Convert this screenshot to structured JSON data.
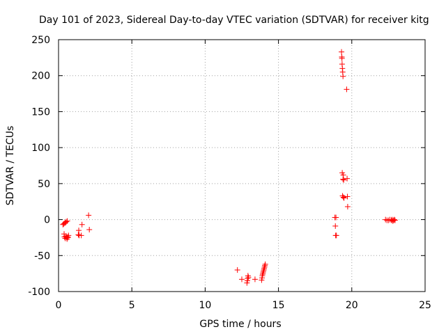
{
  "chart_data": {
    "type": "scatter",
    "title": "Day 101 of 2023, Sidereal Day-to-day VTEC variation (SDTVAR) for receiver kitg",
    "xlabel": "GPS time / hours",
    "ylabel": "SDTVAR / TECUs",
    "xlim": [
      0,
      25
    ],
    "ylim": [
      -100,
      250
    ],
    "xticks": [
      0,
      5,
      10,
      15,
      20,
      25
    ],
    "yticks": [
      -100,
      -50,
      0,
      50,
      100,
      150,
      200,
      250
    ],
    "xtick_labels": [
      "0",
      "5",
      "10",
      "15",
      "20",
      "25"
    ],
    "ytick_labels": [
      "-100",
      "-50",
      "0",
      "50",
      100,
      "150",
      "200",
      "250"
    ],
    "grid": true,
    "marker": "plus",
    "color": "#ff0000",
    "series": [
      {
        "name": "SDTVAR",
        "points": [
          [
            0.3,
            -7
          ],
          [
            0.35,
            -6
          ],
          [
            0.38,
            -20
          ],
          [
            0.4,
            -24
          ],
          [
            0.42,
            -5
          ],
          [
            0.45,
            -26
          ],
          [
            0.48,
            -4
          ],
          [
            0.5,
            -23
          ],
          [
            0.52,
            -3
          ],
          [
            0.55,
            -25
          ],
          [
            0.58,
            -27
          ],
          [
            0.6,
            -2
          ],
          [
            0.62,
            -24
          ],
          [
            0.65,
            -25
          ],
          [
            0.68,
            -22
          ],
          [
            1.35,
            -21
          ],
          [
            1.38,
            -15
          ],
          [
            1.4,
            -22
          ],
          [
            1.55,
            -22
          ],
          [
            1.6,
            -7
          ],
          [
            2.05,
            6
          ],
          [
            2.1,
            -14
          ],
          [
            12.2,
            -70
          ],
          [
            12.5,
            -83
          ],
          [
            12.85,
            -88
          ],
          [
            12.88,
            -85
          ],
          [
            12.9,
            -82
          ],
          [
            12.92,
            -78
          ],
          [
            12.95,
            -80
          ],
          [
            13.4,
            -83
          ],
          [
            13.85,
            -84
          ],
          [
            13.88,
            -81
          ],
          [
            13.9,
            -78
          ],
          [
            13.92,
            -76
          ],
          [
            13.95,
            -74
          ],
          [
            13.97,
            -72
          ],
          [
            14.0,
            -70
          ],
          [
            14.02,
            -68
          ],
          [
            14.05,
            -66
          ],
          [
            14.07,
            -64
          ],
          [
            14.1,
            -62
          ],
          [
            18.85,
            3
          ],
          [
            18.88,
            -9
          ],
          [
            18.9,
            -22
          ],
          [
            18.92,
            3
          ],
          [
            18.95,
            -22
          ],
          [
            19.3,
            233
          ],
          [
            19.32,
            226
          ],
          [
            19.33,
            224
          ],
          [
            19.34,
            216
          ],
          [
            19.35,
            65
          ],
          [
            19.36,
            210
          ],
          [
            19.37,
            33
          ],
          [
            19.38,
            205
          ],
          [
            19.4,
            199
          ],
          [
            19.4,
            56
          ],
          [
            19.42,
            62
          ],
          [
            19.43,
            31
          ],
          [
            19.45,
            55
          ],
          [
            19.47,
            30
          ],
          [
            19.65,
            181
          ],
          [
            19.68,
            57
          ],
          [
            19.7,
            32
          ],
          [
            19.72,
            18
          ],
          [
            22.3,
            0
          ],
          [
            22.4,
            -1
          ],
          [
            22.5,
            -1
          ],
          [
            22.6,
            0
          ],
          [
            22.7,
            -1
          ],
          [
            22.75,
            0
          ],
          [
            22.8,
            -2
          ],
          [
            22.85,
            -1
          ],
          [
            22.9,
            0
          ],
          [
            22.95,
            -1
          ]
        ]
      }
    ]
  }
}
